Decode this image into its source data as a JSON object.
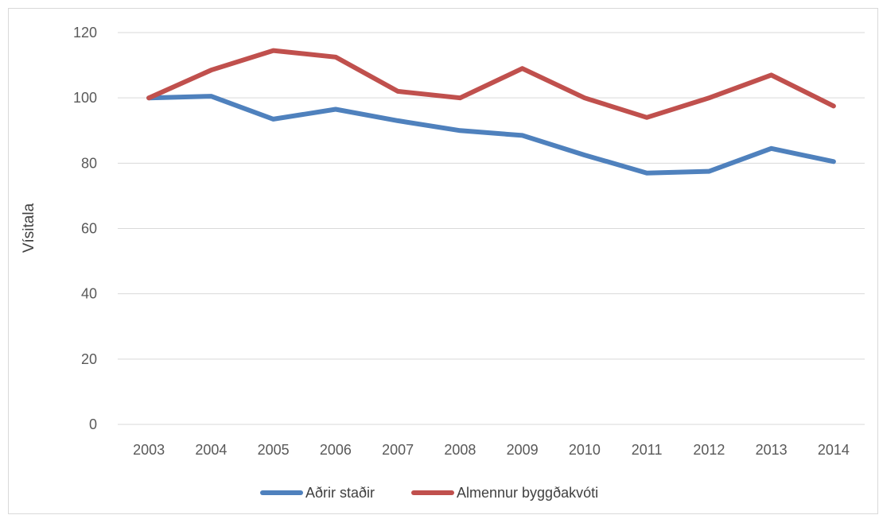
{
  "chart_data": {
    "type": "line",
    "title": "",
    "xlabel": "",
    "ylabel": "Vísitala",
    "categories": [
      "2003",
      "2004",
      "2005",
      "2006",
      "2007",
      "2008",
      "2009",
      "2010",
      "2011",
      "2012",
      "2013",
      "2014"
    ],
    "ylim": [
      0,
      120
    ],
    "yticks": [
      0,
      20,
      40,
      60,
      80,
      100,
      120
    ],
    "grid": true,
    "legend_position": "bottom",
    "series": [
      {
        "name": "Aðrir staðir",
        "color": "#4f81bd",
        "values": [
          100,
          100.5,
          93.5,
          96.5,
          93,
          90,
          88.5,
          82.5,
          77,
          77.5,
          84.5,
          80.5
        ]
      },
      {
        "name": "Almennur byggðakvóti",
        "color": "#c0504d",
        "values": [
          100,
          108.5,
          114.5,
          112.5,
          102,
          100,
          109,
          100,
          94,
          100,
          107,
          97.5
        ]
      }
    ]
  }
}
